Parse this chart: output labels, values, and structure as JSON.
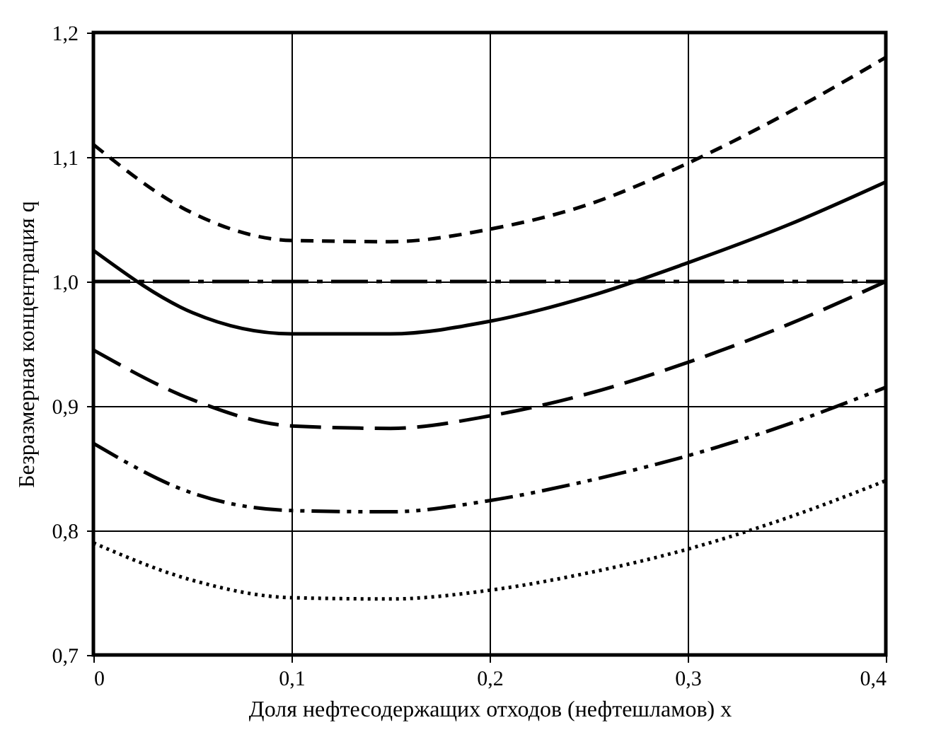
{
  "chart_data": {
    "type": "line",
    "xlabel": "Доля нефтесодержащих отходов (нефтешламов) x",
    "ylabel": "Безразмерная концентрация q",
    "x": [
      0,
      0.05,
      0.1,
      0.15,
      0.2,
      0.25,
      0.3,
      0.35,
      0.4
    ],
    "series": [
      {
        "color": "#000000",
        "line_style": "dashed",
        "values": [
          1.11,
          1.055,
          1.033,
          1.032,
          1.042,
          1.062,
          1.095,
          1.135,
          1.18
        ]
      },
      {
        "color": "#000000",
        "line_style": "dashdot",
        "values": [
          1.0,
          1.0,
          1.0,
          1.0,
          1.0,
          1.0,
          1.0,
          1.0,
          1.0
        ]
      },
      {
        "color": "#000000",
        "line_style": "solid",
        "values": [
          1.025,
          0.975,
          0.958,
          0.958,
          0.968,
          0.988,
          1.015,
          1.045,
          1.08
        ]
      },
      {
        "color": "#000000",
        "line_style": "longdash",
        "values": [
          0.945,
          0.905,
          0.884,
          0.882,
          0.892,
          0.91,
          0.935,
          0.965,
          1.0
        ]
      },
      {
        "color": "#000000",
        "line_style": "dashdotdot",
        "values": [
          0.87,
          0.83,
          0.816,
          0.815,
          0.824,
          0.84,
          0.86,
          0.885,
          0.915
        ]
      },
      {
        "color": "#000000",
        "line_style": "dotted",
        "values": [
          0.79,
          0.76,
          0.746,
          0.745,
          0.752,
          0.766,
          0.785,
          0.81,
          0.84
        ]
      }
    ],
    "xlim": [
      0,
      0.4
    ],
    "xticks": [
      0,
      {
        "value": 0.1,
        "label": "0,1"
      },
      {
        "value": 0.2,
        "label": "0,2"
      },
      {
        "value": 0.3,
        "label": "0,3"
      },
      {
        "value": 0.4,
        "label": "0,4"
      }
    ],
    "ylim": [
      0.7,
      1.2
    ],
    "yticks": [
      {
        "value": 0.7,
        "label": "0,7"
      },
      {
        "value": 0.8,
        "label": "0,8"
      },
      {
        "value": 0.9,
        "label": "0,9"
      },
      {
        "value": 1.0,
        "label": "1,0"
      },
      {
        "value": 1.1,
        "label": "1,1"
      },
      {
        "value": 1.2,
        "label": "1,2"
      }
    ],
    "grid": true,
    "marker": "none"
  }
}
